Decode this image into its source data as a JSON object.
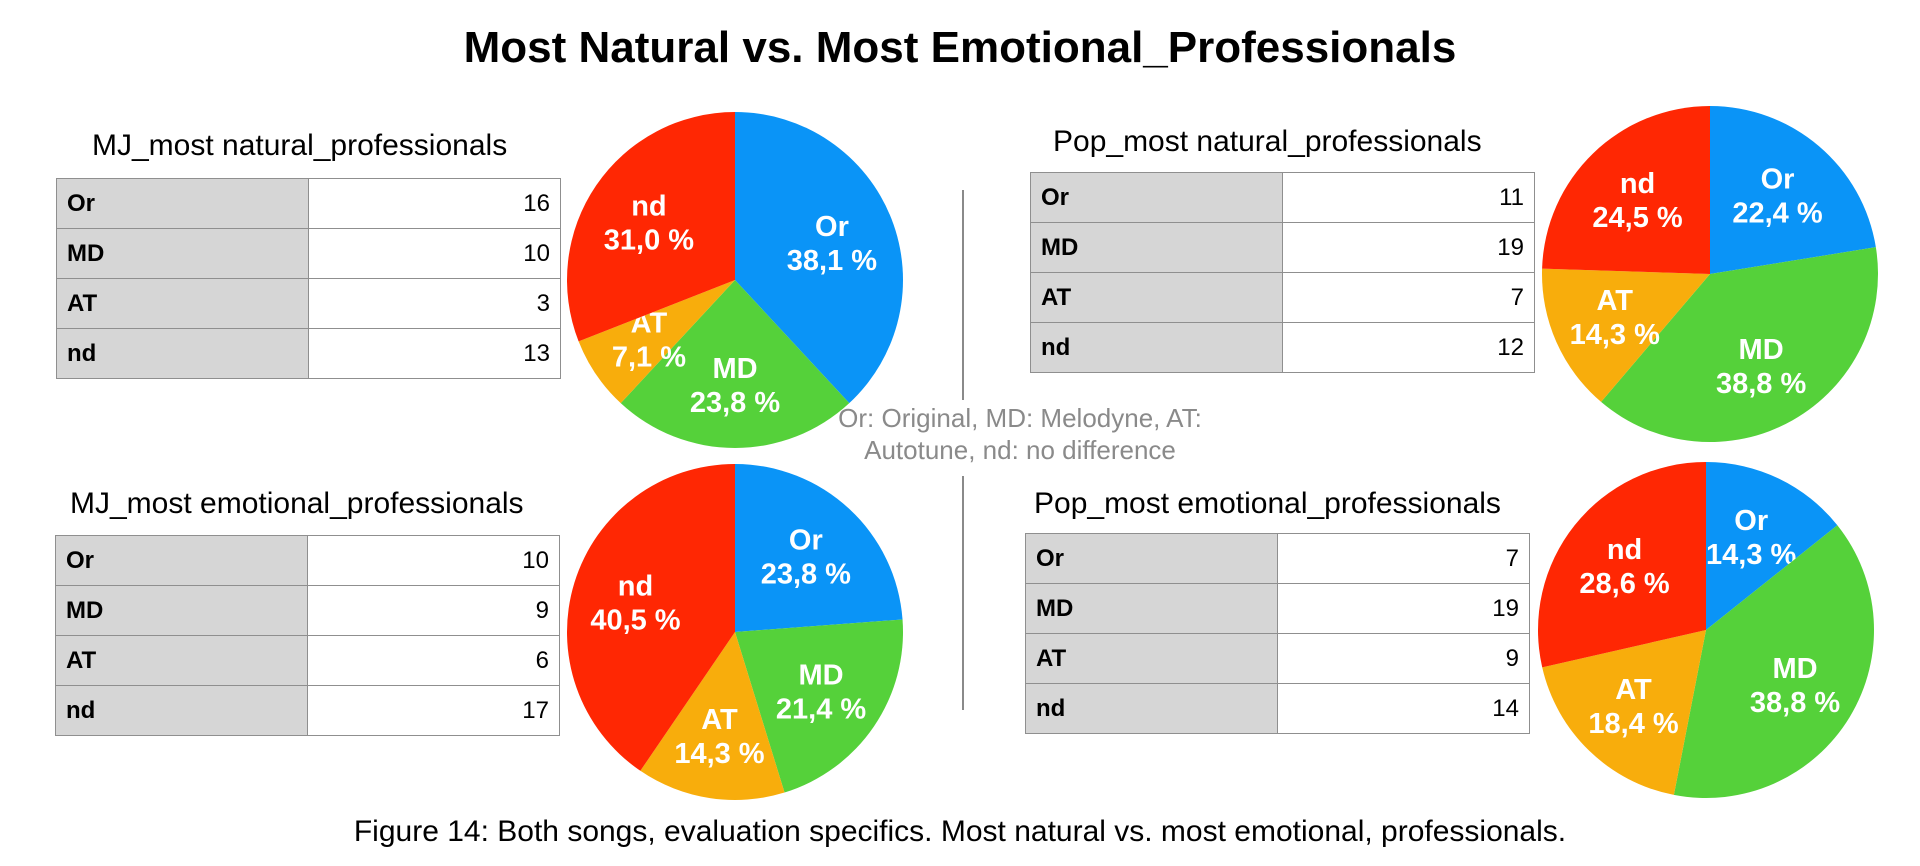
{
  "title": "Most Natural vs. Most Emotional_Professionals",
  "legend_note": {
    "line1": "Or: Original, MD: Melodyne, AT:",
    "line2": "Autotune, nd: no difference"
  },
  "caption": "Figure 14: Both songs, evaluation specifics. Most natural vs. most emotional, professionals.",
  "colors": {
    "Or": "#0A94F7",
    "MD": "#55D13A",
    "AT": "#F8AD0C",
    "nd": "#FF2703"
  },
  "chart_data": [
    {
      "type": "pie",
      "title": "MJ_most natural_professionals",
      "categories": [
        "Or",
        "MD",
        "AT",
        "nd"
      ],
      "values": [
        16,
        10,
        3,
        13
      ],
      "pie_labels": [
        "38,1 %",
        "23,8 %",
        "7,1 %",
        "31,0 %"
      ]
    },
    {
      "type": "pie",
      "title": "Pop_most natural_professionals",
      "categories": [
        "Or",
        "MD",
        "AT",
        "nd"
      ],
      "values": [
        11,
        19,
        7,
        12
      ],
      "pie_labels": [
        "22,4 %",
        "38,8 %",
        "14,3 %",
        "24,5 %"
      ]
    },
    {
      "type": "pie",
      "title": "MJ_most emotional_professionals",
      "categories": [
        "Or",
        "MD",
        "AT",
        "nd"
      ],
      "values": [
        10,
        9,
        6,
        17
      ],
      "pie_labels": [
        "23,8 %",
        "21,4 %",
        "14,3 %",
        "40,5 %"
      ]
    },
    {
      "type": "pie",
      "title": "Pop_most emotional_professionals",
      "categories": [
        "Or",
        "MD",
        "AT",
        "nd"
      ],
      "values": [
        7,
        19,
        9,
        14
      ],
      "pie_labels": [
        "14,3 %",
        "38,8 %",
        "18,4 %",
        "28,6 %"
      ]
    }
  ]
}
